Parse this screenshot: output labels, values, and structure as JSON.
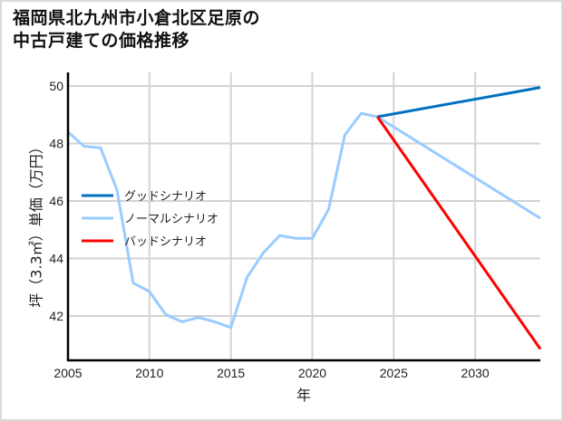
{
  "title_line1": "福岡県北九州市小倉北区足原の",
  "title_line2": "中古戸建ての価格推移",
  "chart_data": {
    "type": "line",
    "title": "福岡県北九州市小倉北区足原の中古戸建ての価格推移",
    "xlabel": "年",
    "ylabel": "坪（3.3㎡）単価（万円）",
    "xlim": [
      2005,
      2034
    ],
    "ylim": [
      40.5,
      50.2
    ],
    "xticks": [
      2005,
      2010,
      2015,
      2020,
      2025,
      2030
    ],
    "yticks": [
      42,
      44,
      46,
      48,
      50
    ],
    "grid": true,
    "legend_position": "upper left (inside, mid-left)",
    "series": [
      {
        "name": "グッドシナリオ",
        "color": "#0070c0",
        "x": [
          2024,
          2034
        ],
        "values": [
          48.93,
          49.95
        ]
      },
      {
        "name": "ノーマルシナリオ",
        "color": "#99ccff",
        "x": [
          2005,
          2006,
          2007,
          2008,
          2009,
          2010,
          2011,
          2012,
          2013,
          2014,
          2015,
          2016,
          2017,
          2018,
          2019,
          2020,
          2021,
          2022,
          2023,
          2024,
          2034
        ],
        "values": [
          48.4,
          47.9,
          47.85,
          46.4,
          43.15,
          42.85,
          42.05,
          41.8,
          41.95,
          41.8,
          41.6,
          43.35,
          44.2,
          44.8,
          44.7,
          44.7,
          45.7,
          48.3,
          49.05,
          48.93,
          45.4
        ]
      },
      {
        "name": "バッドシナリオ",
        "color": "#ff0000",
        "x": [
          2024,
          2034
        ],
        "values": [
          48.93,
          40.85
        ]
      }
    ]
  }
}
